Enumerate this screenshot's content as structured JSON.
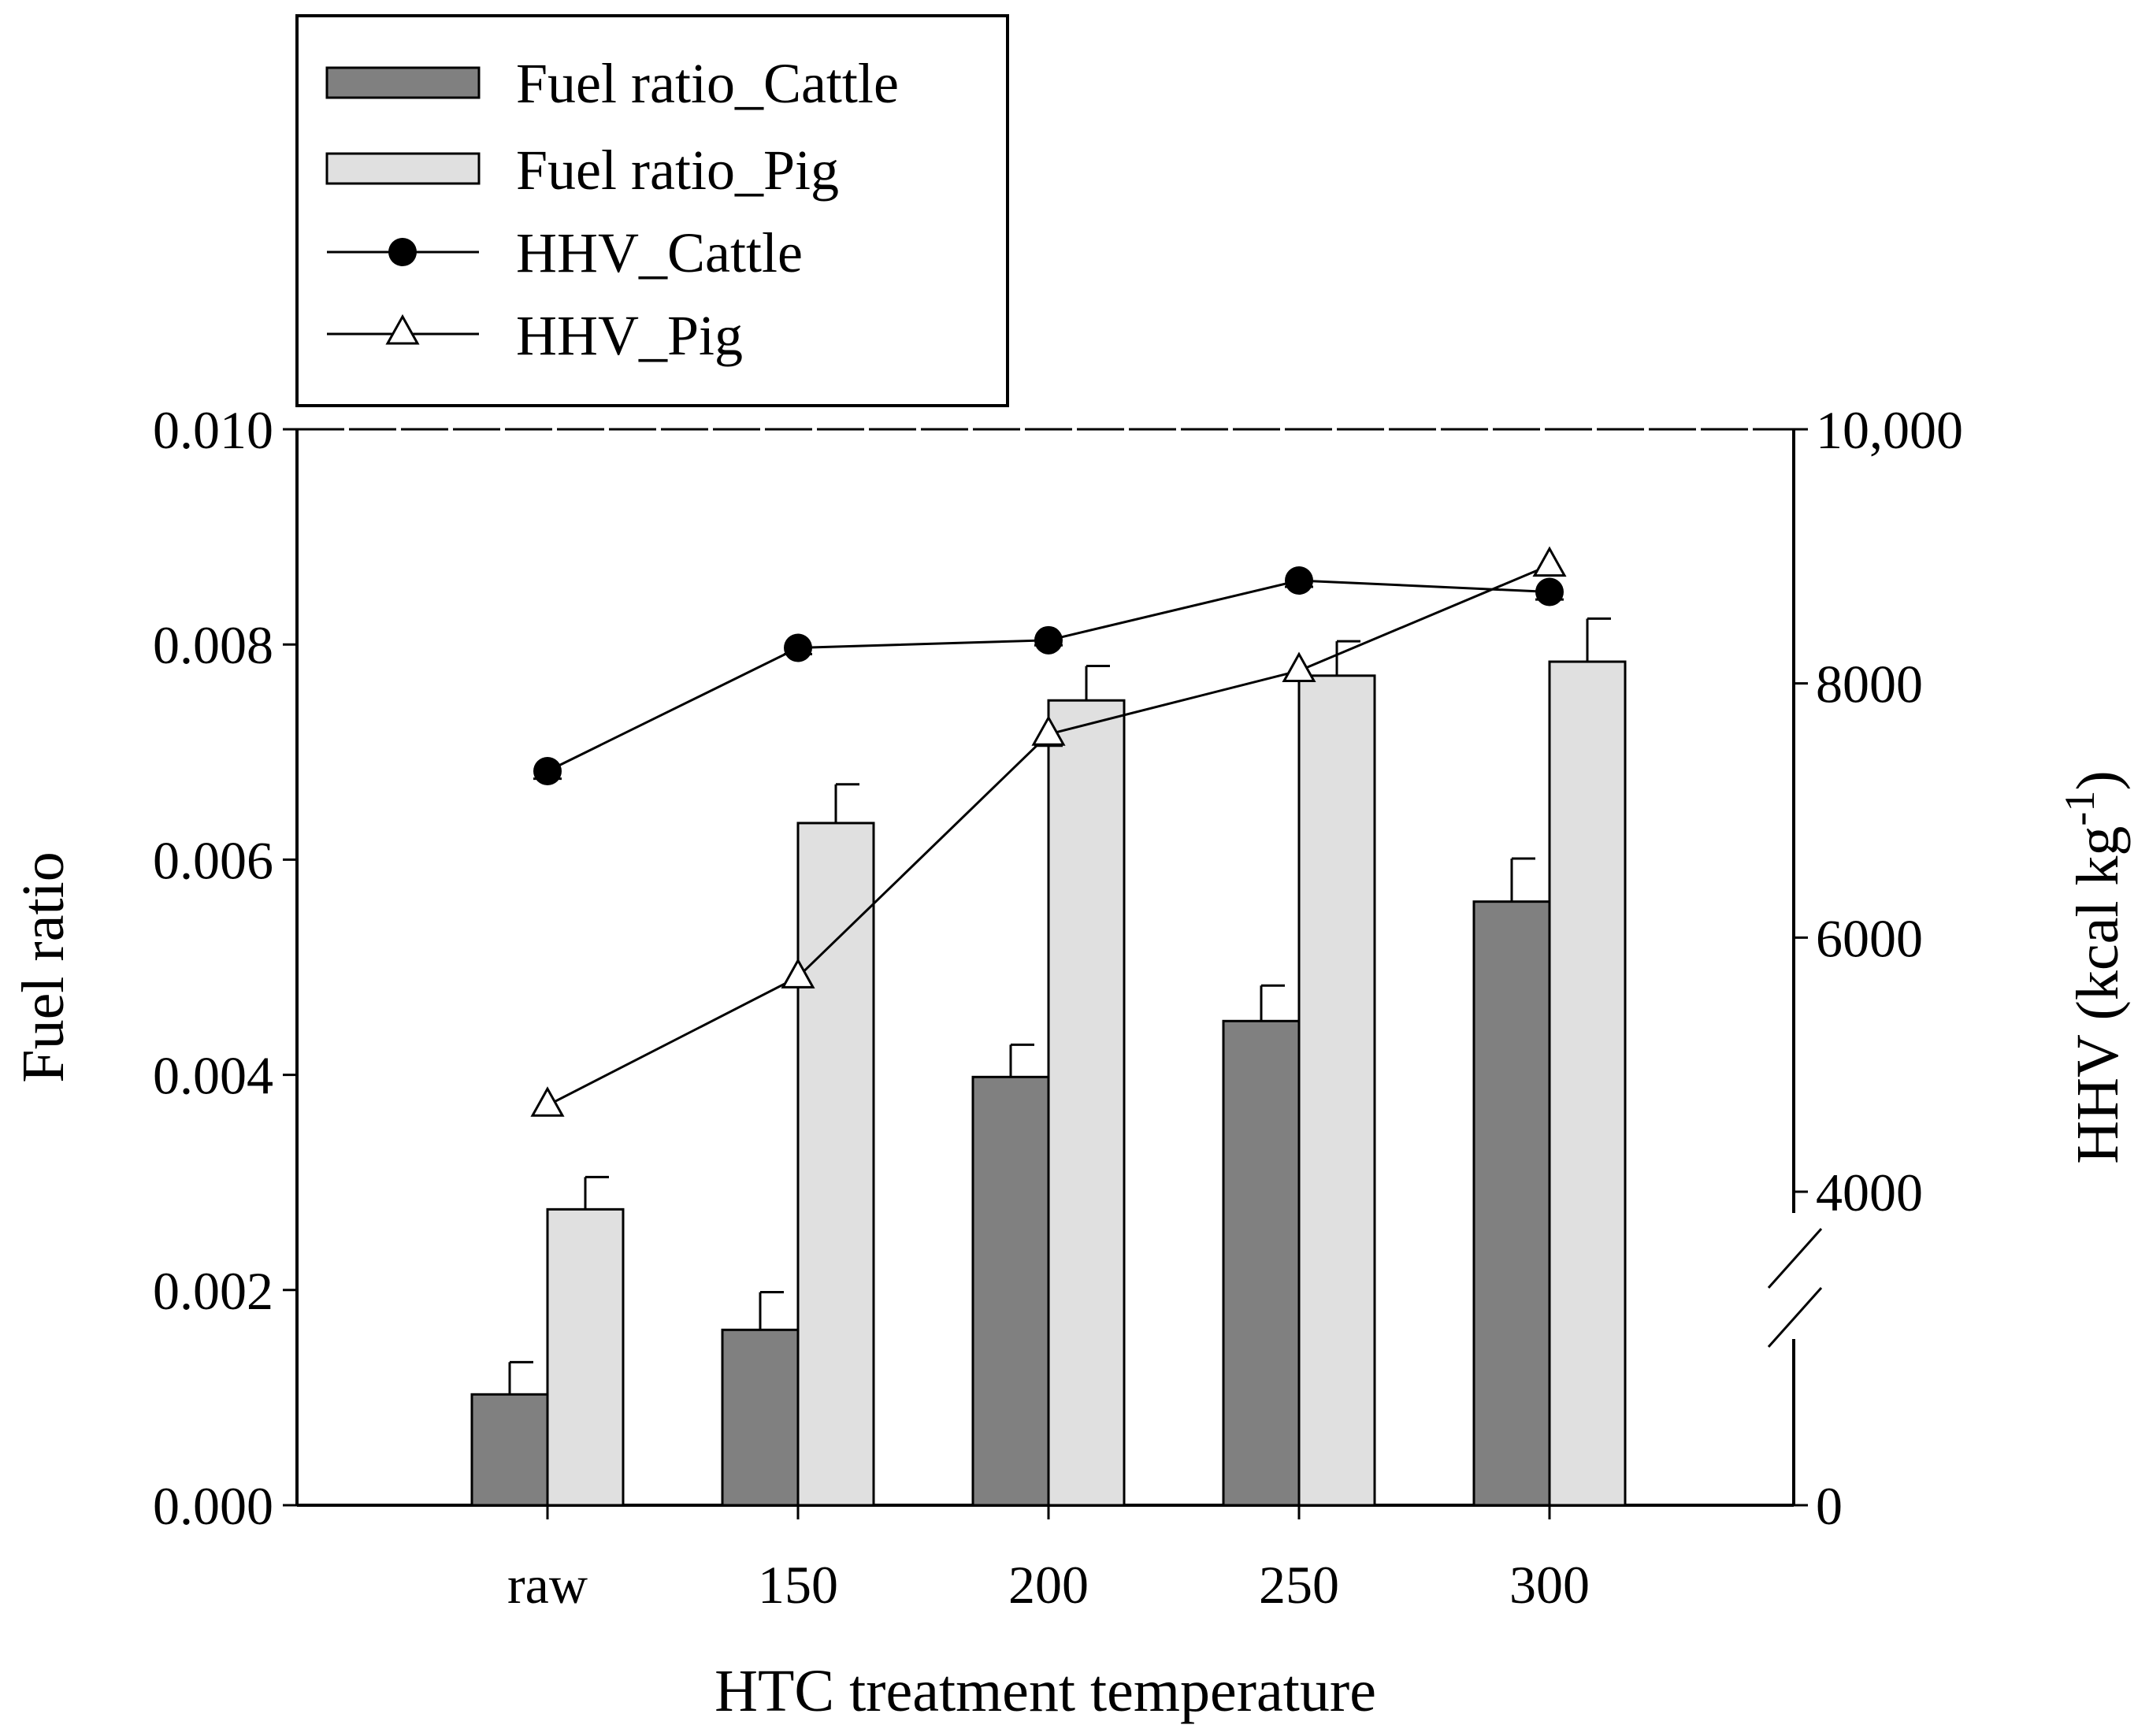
{
  "chart_data": {
    "type": "bar",
    "xlabel": "HTC treatment temperature",
    "ylabel_left": "Fuel ratio",
    "ylabel_right_main": "HHV (kcal kg",
    "ylabel_right_sup": "-1",
    "ylabel_right_close": ")",
    "categories": [
      "raw",
      "150",
      "200",
      "250",
      "300"
    ],
    "left_axis": {
      "ylim": [
        0,
        0.01
      ],
      "ticks": [
        0,
        0.002,
        0.004,
        0.006,
        0.008,
        0.01
      ],
      "tick_labels": [
        "0.000",
        "0.002",
        "0.004",
        "0.006",
        "0.008",
        "0.010"
      ]
    },
    "right_axis": {
      "broken": true,
      "lower_segment_ylim": [
        0,
        1000
      ],
      "upper_segment_ylim": [
        4000,
        10000
      ],
      "ticks": [
        0,
        4000,
        6000,
        8000,
        10000
      ],
      "tick_labels": [
        "0",
        "4000",
        "6000",
        "8000",
        "10,000"
      ]
    },
    "series": [
      {
        "name": "Fuel ratio_Cattle",
        "kind": "bar",
        "axis": "left",
        "color": "#808080",
        "values": [
          0.00103,
          0.00163,
          0.00398,
          0.0045,
          0.00561
        ],
        "errors": [
          0.0003,
          0.00035,
          0.0003,
          0.00033,
          0.0004
        ]
      },
      {
        "name": "Fuel ratio_Pig",
        "kind": "bar",
        "axis": "left",
        "color": "#e0e0e0",
        "values": [
          0.00275,
          0.00634,
          0.00748,
          0.00771,
          0.00784
        ],
        "errors": [
          0.0003,
          0.00036,
          0.00032,
          0.00032,
          0.0004
        ]
      },
      {
        "name": "HHV_Cattle",
        "kind": "line",
        "marker": "filled-circle",
        "axis": "right",
        "color": "#000000",
        "values": [
          7310,
          8280,
          8340,
          8810,
          8720
        ],
        "errors": [
          60,
          50,
          40,
          50,
          60
        ]
      },
      {
        "name": "HHV_Pig",
        "kind": "line",
        "marker": "open-triangle",
        "axis": "right",
        "color": "#000000",
        "values": [
          4680,
          5690,
          7600,
          8100,
          8930
        ],
        "errors": [
          60,
          70,
          90,
          70,
          60
        ]
      }
    ],
    "legend": {
      "position": "top-left",
      "entries": [
        "Fuel ratio_Cattle",
        "Fuel ratio_Pig",
        "HHV_Cattle",
        "HHV_Pig"
      ]
    }
  }
}
